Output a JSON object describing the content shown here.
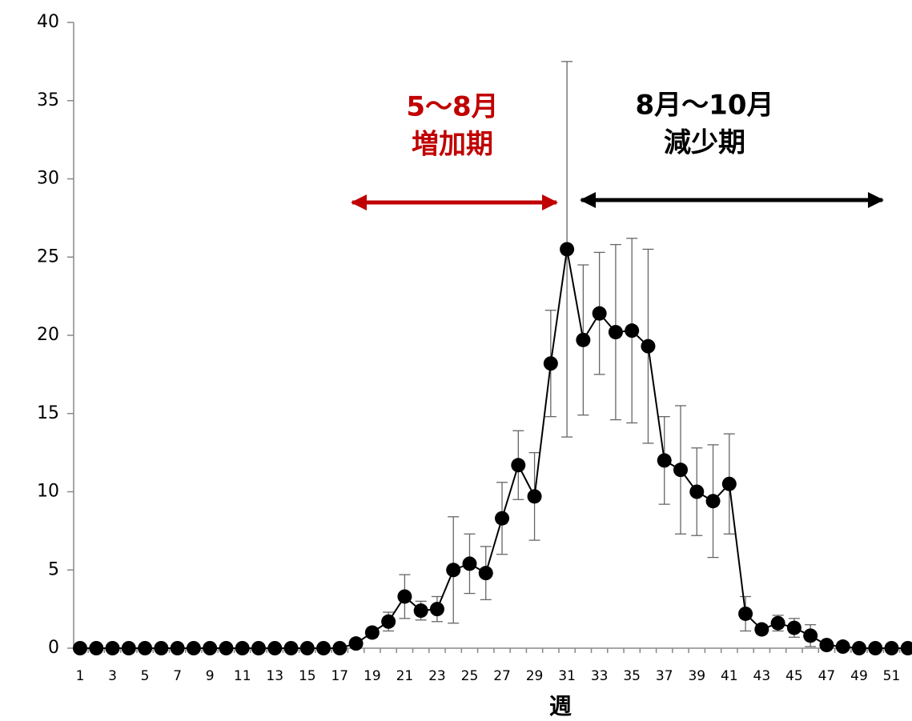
{
  "chart_data": {
    "type": "line",
    "x_label": "週",
    "categories": [
      "1",
      null,
      "3",
      null,
      "5",
      null,
      "7",
      null,
      "9",
      null,
      "11",
      null,
      "13",
      null,
      "15",
      null,
      "17",
      null,
      "19",
      null,
      "21",
      null,
      "23",
      null,
      "25",
      null,
      "27",
      null,
      "29",
      null,
      "31",
      null,
      "33",
      null,
      "35",
      null,
      "37",
      null,
      "39",
      null,
      "41",
      null,
      "43",
      null,
      "45",
      null,
      "47",
      null,
      "49",
      null,
      "51",
      null
    ],
    "series": [
      {
        "color": "#000000",
        "values": [
          0,
          0,
          0,
          0,
          0,
          0,
          0,
          0,
          0,
          0,
          0,
          0,
          0,
          0,
          0,
          0,
          0,
          0.3,
          1.0,
          1.7,
          3.3,
          2.4,
          2.5,
          5.0,
          5.4,
          4.8,
          8.3,
          11.7,
          9.7,
          18.2,
          25.5,
          19.7,
          21.4,
          20.2,
          20.3,
          19.3,
          12.0,
          11.4,
          10.0,
          9.4,
          10.5,
          2.2,
          1.2,
          1.6,
          1.3,
          0.8,
          0.2,
          0.1,
          0,
          0,
          0,
          0
        ],
        "errors": [
          null,
          null,
          null,
          null,
          null,
          null,
          null,
          null,
          null,
          null,
          null,
          null,
          null,
          null,
          null,
          null,
          null,
          null,
          0.3,
          0.6,
          1.4,
          0.6,
          0.8,
          3.4,
          1.9,
          1.7,
          2.3,
          2.2,
          2.8,
          3.4,
          12.0,
          4.8,
          3.9,
          5.6,
          5.9,
          6.2,
          2.8,
          4.1,
          2.8,
          3.6,
          3.2,
          1.1,
          0.3,
          0.5,
          0.6,
          0.7,
          null,
          null,
          null,
          null,
          null,
          null
        ]
      }
    ],
    "ylim": [
      0,
      40
    ],
    "yticks": [
      0,
      5,
      10,
      15,
      20,
      25,
      30,
      35,
      40
    ],
    "annotations": [
      {
        "lines": [
          "5〜8月",
          "増加期"
        ],
        "color": "#c00000"
      },
      {
        "lines": [
          "8月〜10月",
          "減少期"
        ],
        "color": "#000000"
      }
    ]
  }
}
